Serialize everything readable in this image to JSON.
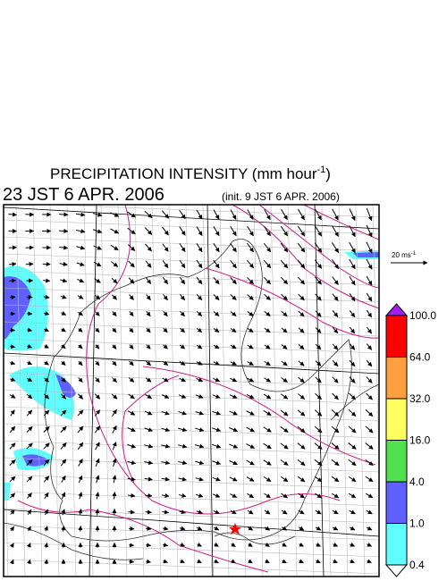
{
  "header": {
    "title": "PRECIPITATION INTENSITY (mm hour",
    "title_exponent": "-1",
    "title_close": ")",
    "valid_time": "23 JST 6 APR. 2006",
    "init_time": "(init. 9 JST 6 APR. 2006)"
  },
  "wind_reference": {
    "label": "20 ms",
    "exponent": "-1"
  },
  "colorbar": {
    "labels": [
      "100.0",
      "64.0",
      "32.0",
      "16.0",
      "4.0",
      "1.0",
      "0.4"
    ],
    "colors": [
      "#a020f0",
      "#ff0000",
      "#ffa040",
      "#ffff60",
      "#50e050",
      "#6060ff",
      "#60ffff",
      "#ffffff"
    ]
  }
}
